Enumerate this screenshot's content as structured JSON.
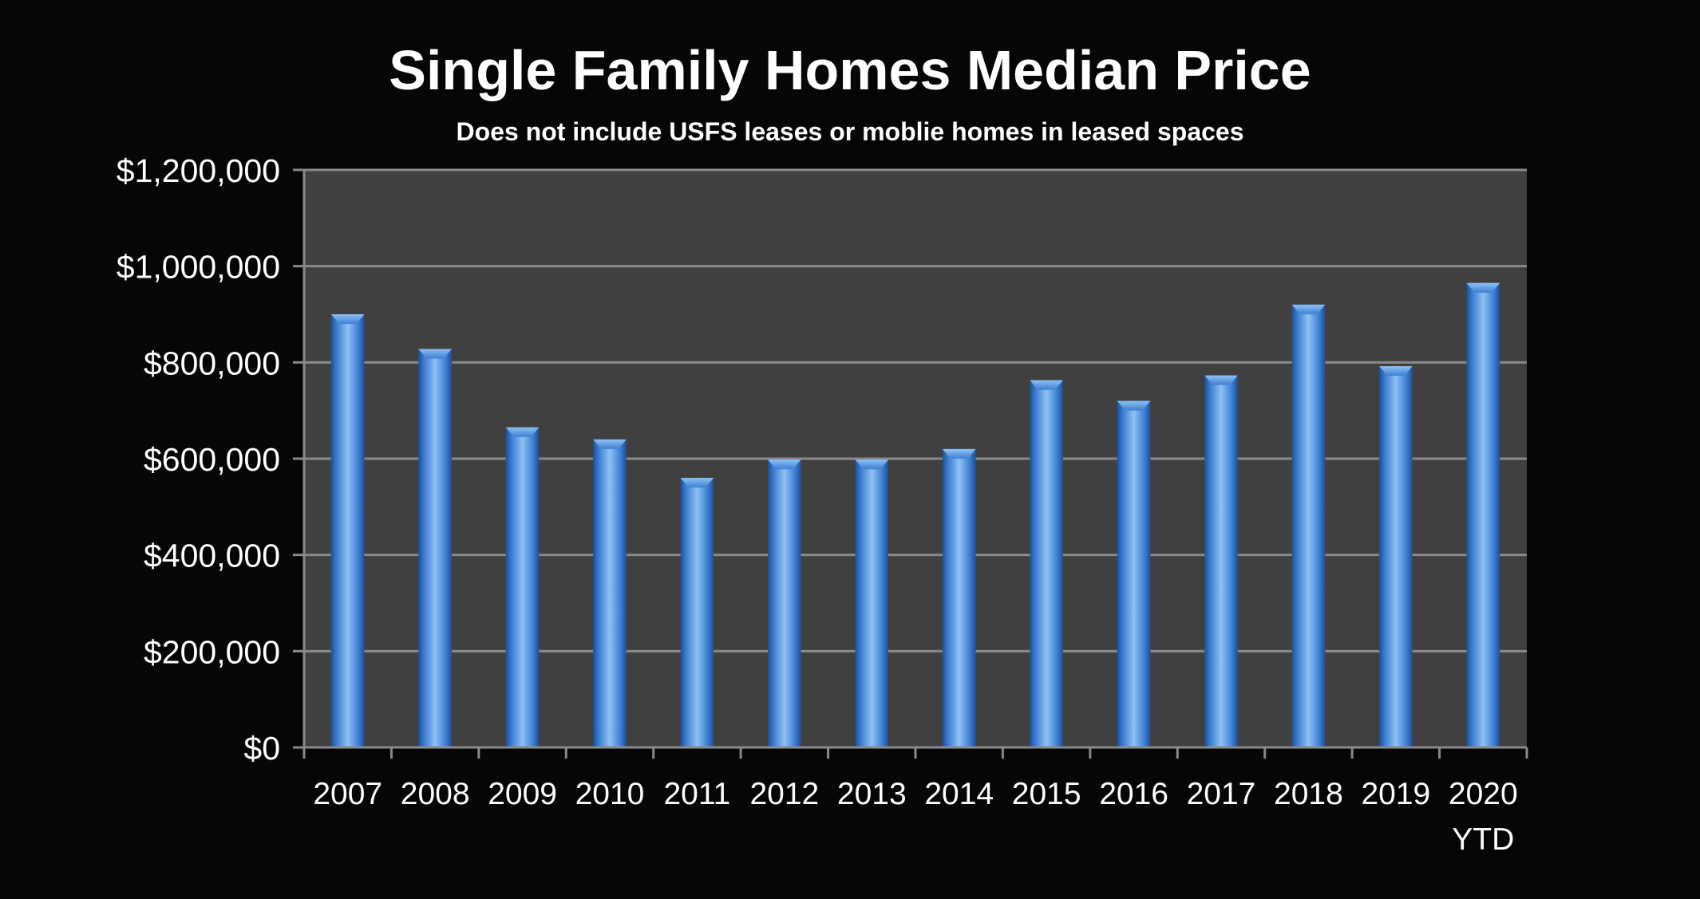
{
  "chart_data": {
    "type": "bar",
    "title": "Single Family Homes Median Price",
    "subtitle": "Does not include USFS leases or moblie homes in leased spaces",
    "categories": [
      "2007",
      "2008",
      "2009",
      "2010",
      "2011",
      "2012",
      "2013",
      "2014",
      "2015",
      "2016",
      "2017",
      "2018",
      "2019",
      "2020"
    ],
    "category_sublabels": [
      "",
      "",
      "",
      "",
      "",
      "",
      "",
      "",
      "",
      "",
      "",
      "",
      "",
      "YTD"
    ],
    "series": [
      {
        "values": [
          900000,
          828000,
          665000,
          640000,
          560000,
          598000,
          598000,
          620000,
          763000,
          720000,
          773000,
          920000,
          792000,
          965000
        ]
      }
    ],
    "ylim": [
      0,
      1200000
    ],
    "y_ticks": [
      0,
      200000,
      400000,
      600000,
      800000,
      1000000,
      1200000
    ],
    "y_tick_labels": [
      "$0",
      "$200,000",
      "$400,000",
      "$600,000",
      "$800,000",
      "$1,000,000",
      "$1,200,000"
    ],
    "xlabel": "",
    "ylabel": "",
    "grid": true,
    "legend": "none",
    "colors": {
      "background": "#060606",
      "plot_area": "#404040",
      "bar": "#3d7fd3",
      "bar_highlight": "#8fc1f4",
      "bar_shadow": "#1f4f95",
      "gridline": "#8a8a8a",
      "text": "#ffffff"
    }
  }
}
